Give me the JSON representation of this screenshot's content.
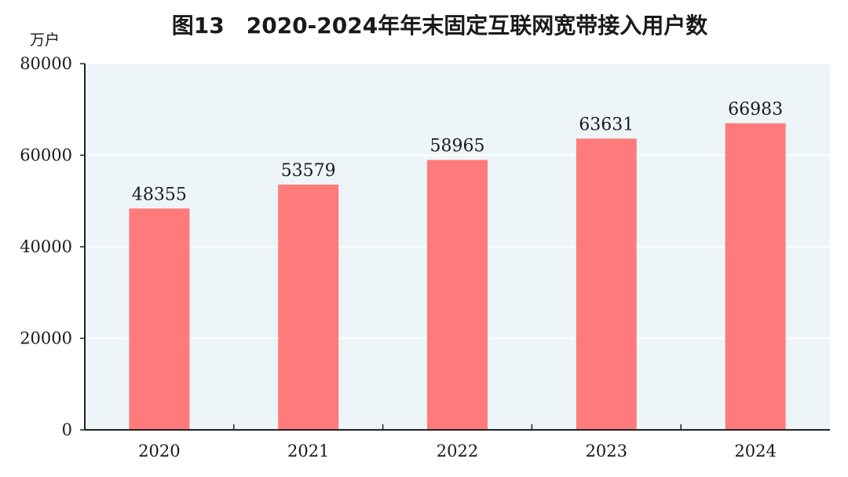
{
  "chart_data": {
    "type": "bar",
    "title": "图13　2020-2024年年末固定互联网宽带接入用户数",
    "unit": "万户",
    "xlabel": "",
    "ylabel": "",
    "categories": [
      "2020",
      "2021",
      "2022",
      "2023",
      "2024"
    ],
    "values": [
      48355,
      53579,
      58965,
      63631,
      66983
    ],
    "data_labels": [
      "48355",
      "53579",
      "58965",
      "63631",
      "66983"
    ],
    "y_ticks": [
      "0",
      "20000",
      "40000",
      "60000",
      "80000"
    ],
    "ylim": [
      0,
      80000
    ],
    "grid": true,
    "legend": "none",
    "colors": {
      "bar": "#FF7B7B",
      "plot_background": "#EEF5F8",
      "gridline": "#FFFFFF",
      "axis": "#222222"
    }
  }
}
